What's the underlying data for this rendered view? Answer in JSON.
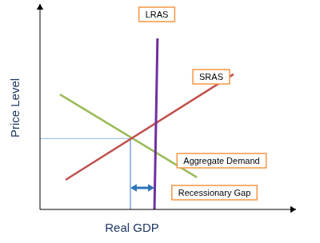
{
  "chart_data": {
    "type": "line",
    "x_label": "Real GDP",
    "y_label": "Price Level",
    "xlim": [
      0,
      100
    ],
    "ylim": [
      0,
      100
    ],
    "tick_labels": false,
    "grid": false,
    "series": [
      {
        "name": "LRAS",
        "color": "#7030a0",
        "x": [
          45.9,
          44.7
        ],
        "values": [
          83.3,
          0
        ]
      },
      {
        "name": "SRAS",
        "color": "#c0504d",
        "x": [
          10.0,
          75.6
        ],
        "values": [
          14.4,
          65.8
        ]
      },
      {
        "name": "Aggregate Demand",
        "color": "#9bbb59",
        "x": [
          7.8,
          61.3
        ],
        "values": [
          56.0,
          15.6
        ]
      }
    ],
    "equilibrium": {
      "x": 35.3,
      "y": 34.5
    },
    "recessionary_gap": {
      "label": "Recessionary Gap",
      "from": 35.3,
      "to": 44.7,
      "y": 10.5
    }
  }
}
